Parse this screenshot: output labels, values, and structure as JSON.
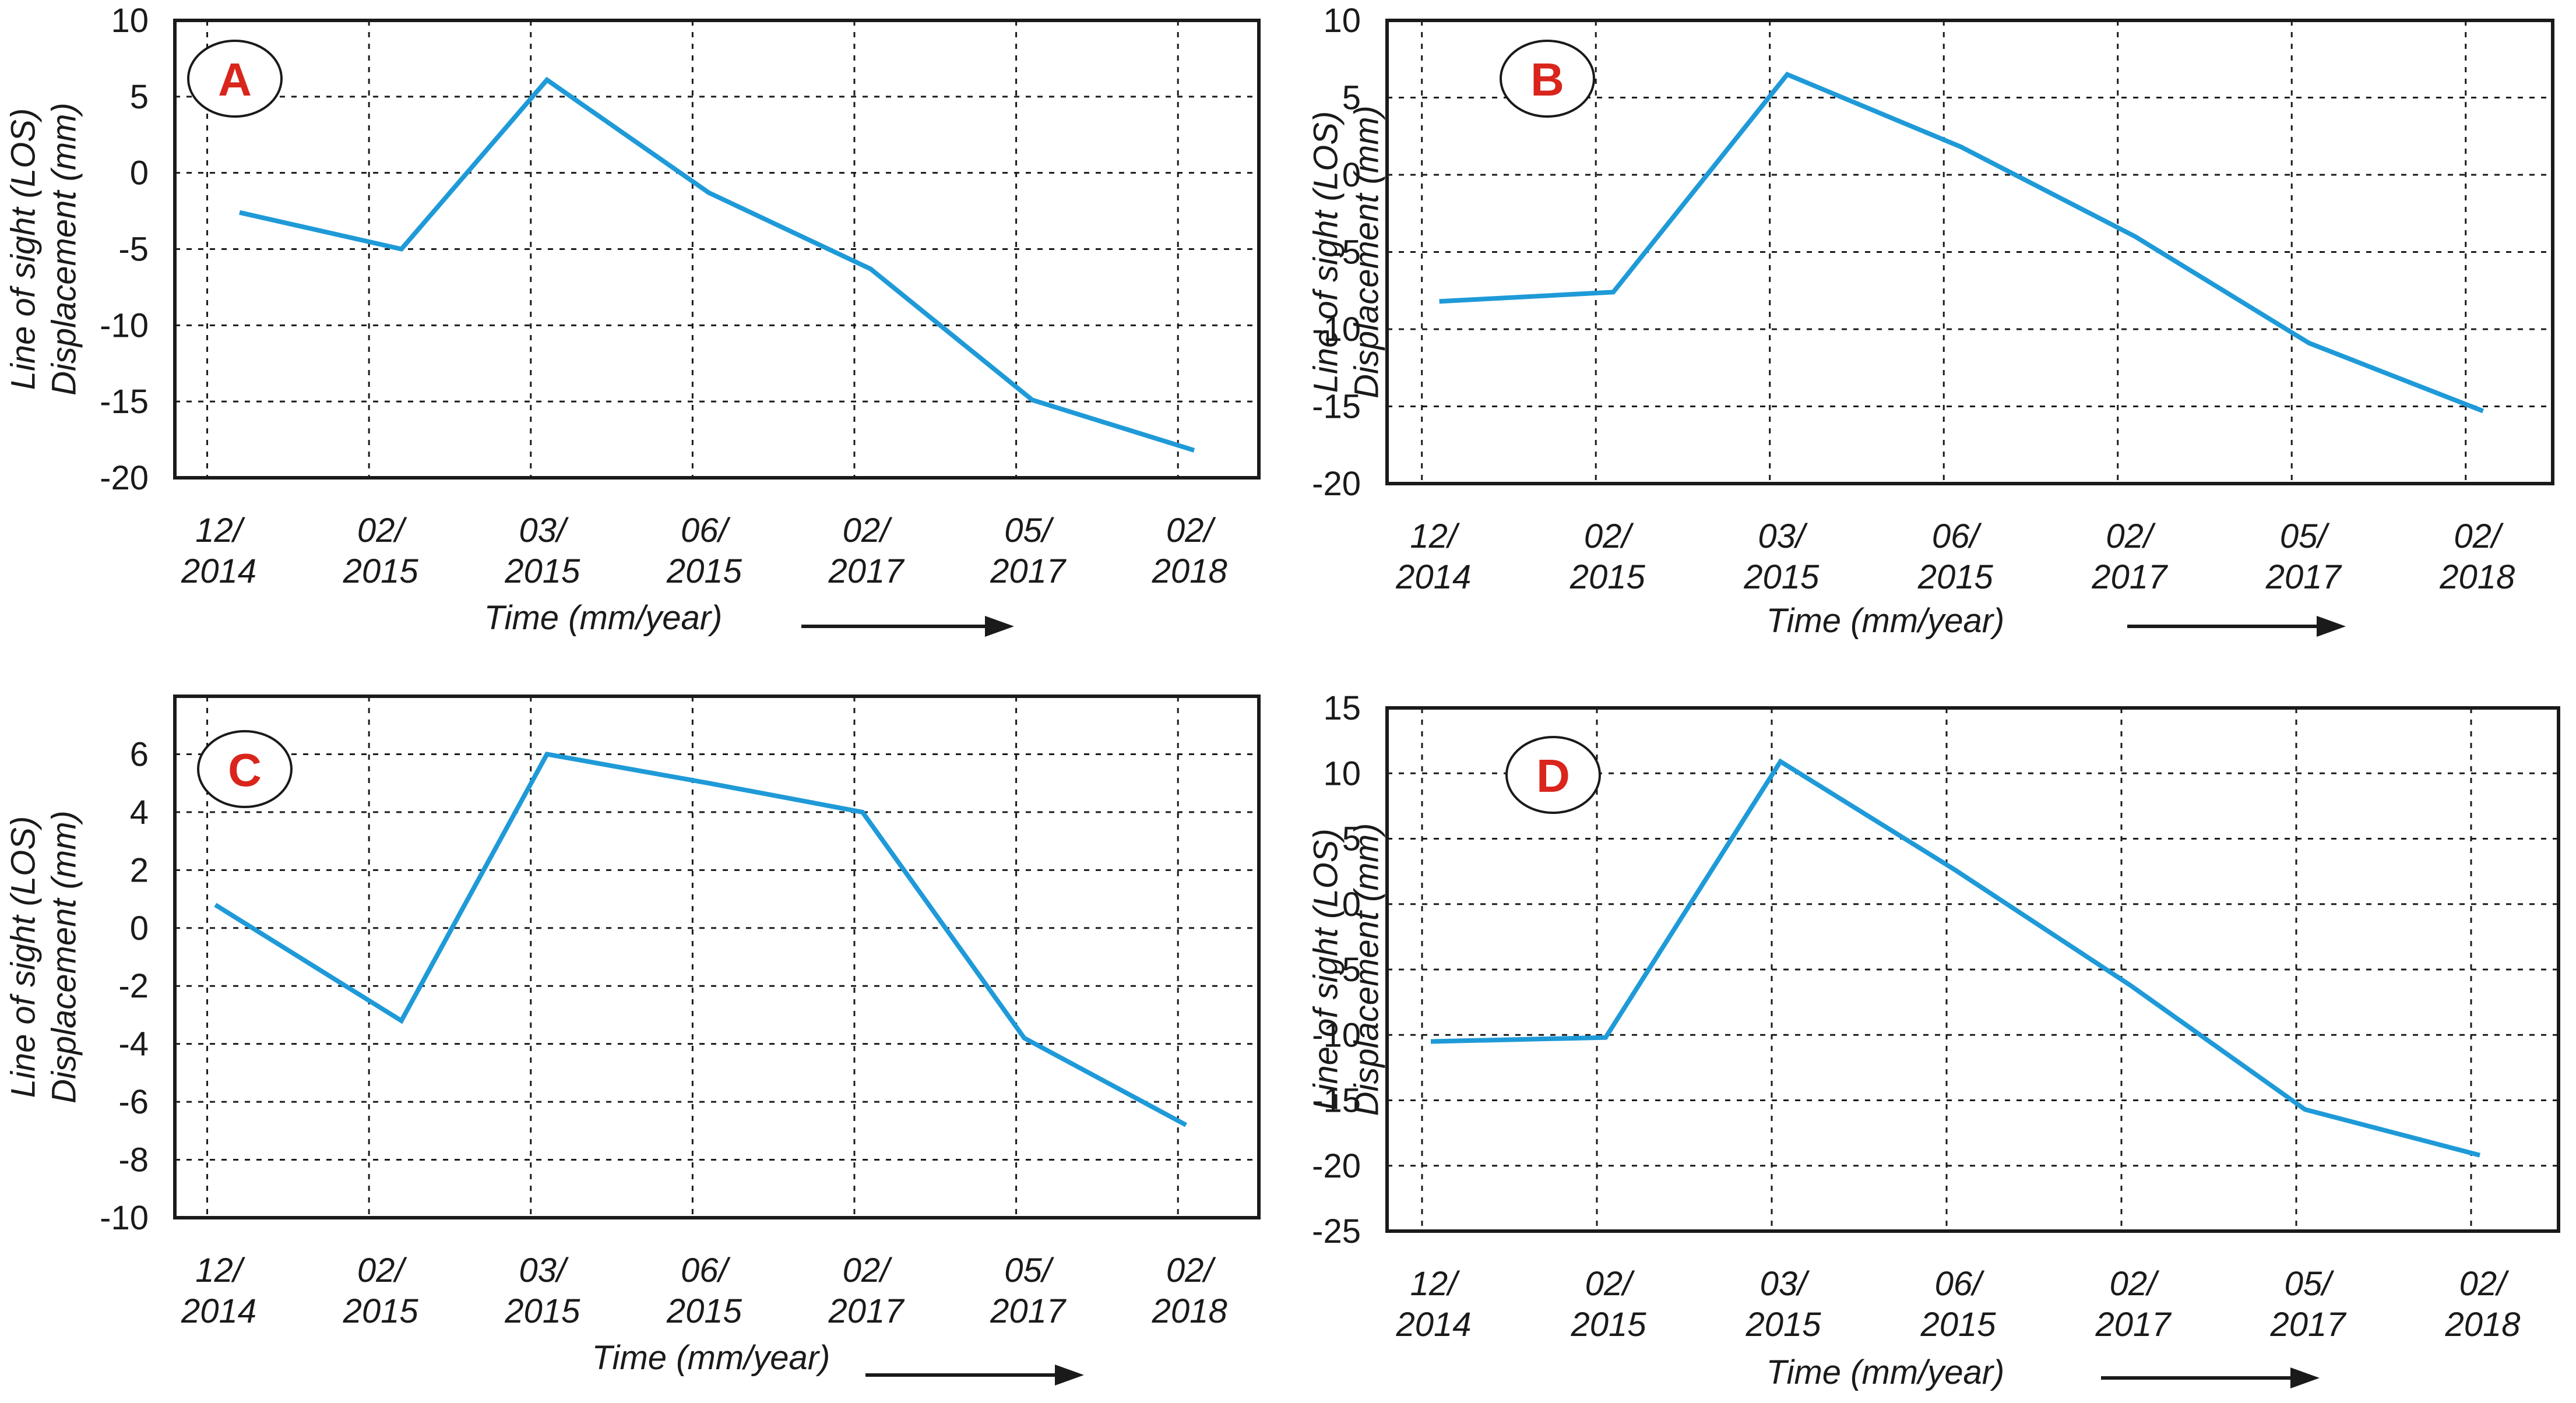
{
  "figure": {
    "colors": {
      "line": "#1f9ad8",
      "badge_text": "#d9251c",
      "frame": "#1a1a1a",
      "grid": "#1a1a1a"
    },
    "arrow_icon": "right-arrow-icon"
  },
  "chart_data": [
    {
      "type": "line",
      "panel_label": "A",
      "categories": [
        "12/\n2014",
        "02/\n2015",
        "03/\n2015",
        "06/\n2015",
        "02/\n2017",
        "05/\n2017",
        "02/\n2018"
      ],
      "x": [
        0.2,
        1.2,
        2.1,
        3.1,
        4.1,
        5.1,
        6.1
      ],
      "y": [
        -2.6,
        -5,
        6.1,
        -1.3,
        -6.3,
        -14.9,
        -18.2
      ],
      "ylim": [
        -20,
        10
      ],
      "yticks": [
        10,
        5,
        0,
        -5,
        -10,
        -15,
        -20
      ],
      "ylabel": [
        "Line of sight (LOS)",
        "Displacement (mm)"
      ],
      "xlabel": "Time (mm/year)",
      "grid": true
    },
    {
      "type": "line",
      "panel_label": "B",
      "categories": [
        "12/\n2014",
        "02/\n2015",
        "03/\n2015",
        "06/\n2015",
        "02/\n2017",
        "05/\n2017",
        "02/\n2018"
      ],
      "x": [
        0.1,
        1.1,
        2.1,
        3.1,
        4.1,
        5.1,
        6.1
      ],
      "y": [
        -8.2,
        -7.6,
        6.5,
        1.8,
        -4,
        -10.9,
        -15.3
      ],
      "ylim": [
        -20,
        10
      ],
      "yticks": [
        10,
        5,
        0,
        -5,
        -10,
        -15,
        -20
      ],
      "ylabel": [
        "Line of sight (LOS)",
        "Displacement (mm)"
      ],
      "xlabel": "Time (mm/year)",
      "grid": true
    },
    {
      "type": "line",
      "panel_label": "C",
      "categories": [
        "12/\n2014",
        "02/\n2015",
        "03/\n2015",
        "06/\n2015",
        "02/\n2017",
        "05/\n2017",
        "02/\n2018"
      ],
      "x": [
        0.05,
        1.2,
        2.1,
        3.1,
        4.05,
        5.05,
        6.05
      ],
      "y": [
        0.8,
        -3.2,
        6,
        5,
        4,
        -3.8,
        -6.8
      ],
      "ylim": [
        -10,
        8
      ],
      "yticks": [
        6,
        4,
        2,
        0,
        -2,
        -4,
        -6,
        -8,
        -10
      ],
      "ylabel": [
        "Line of sight (LOS)",
        "Displacement (mm)"
      ],
      "xlabel": "Time (mm/year)",
      "grid": true
    },
    {
      "type": "line",
      "panel_label": "D",
      "categories": [
        "12/\n2014",
        "02/\n2015",
        "03/\n2015",
        "06/\n2015",
        "02/\n2017",
        "05/\n2017",
        "02/\n2018"
      ],
      "x": [
        0.05,
        1.05,
        2.05,
        3.05,
        4.05,
        5.05,
        6.05
      ],
      "y": [
        -10.5,
        -10.2,
        10.9,
        2.6,
        -6.2,
        -15.7,
        -19.2
      ],
      "ylim": [
        -25,
        15
      ],
      "yticks": [
        15,
        10,
        5,
        0,
        -5,
        -10,
        -15,
        -20,
        -25
      ],
      "ylabel": [
        "Line of sight (LOS)",
        "Displacement (mm)"
      ],
      "xlabel": "Time (mm/year)",
      "grid": true
    }
  ]
}
